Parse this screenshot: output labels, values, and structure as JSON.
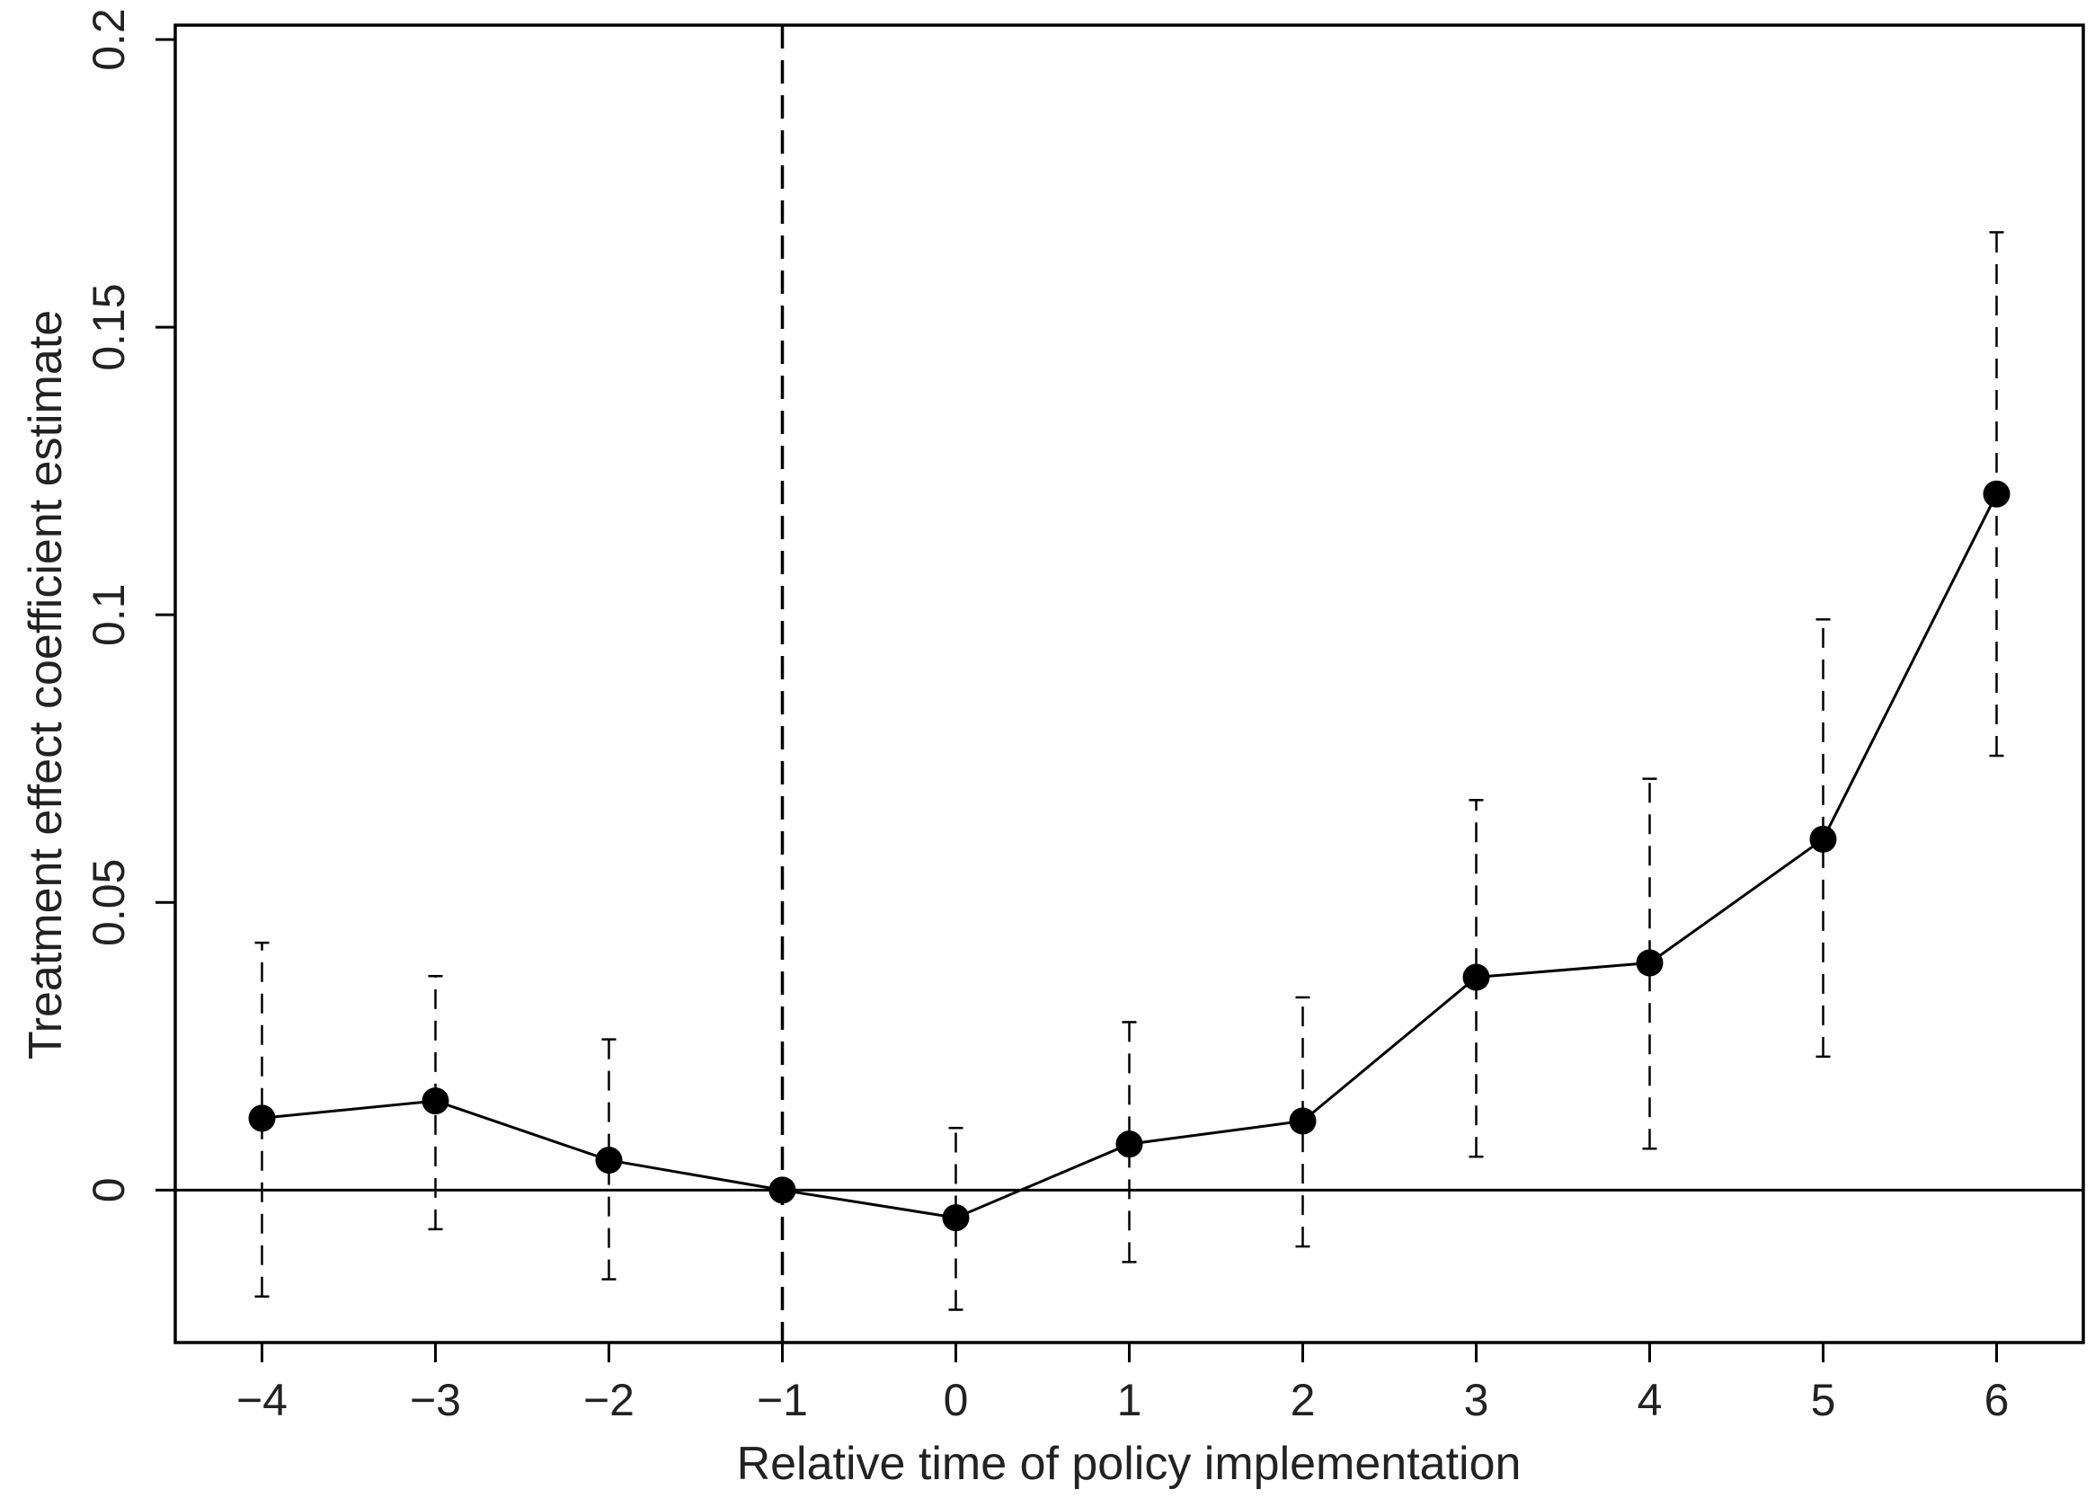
{
  "chart_data": {
    "type": "line",
    "title": "",
    "xlabel": "Relative time of policy implementation",
    "ylabel": "Treatment effect coefficient estimate",
    "x_ticks": [
      -4,
      -3,
      -2,
      -1,
      0,
      1,
      2,
      3,
      4,
      5,
      6
    ],
    "x_tick_labels": [
      "−4",
      "−3",
      "−2",
      "−1",
      "0",
      "1",
      "2",
      "3",
      "4",
      "5",
      "6"
    ],
    "y_ticks": [
      0,
      0.05,
      0.1,
      0.15,
      0.2
    ],
    "y_tick_labels": [
      "0",
      "0.05",
      "0.1",
      "0.15",
      "0.2"
    ],
    "xlim": [
      -4.5,
      6.5
    ],
    "ylim": [
      -0.0265,
      0.2025
    ],
    "reference_lines": {
      "horizontal_at_y": 0,
      "vertical_dashed_at_x": -1
    },
    "grid": false,
    "legend": "none",
    "series": [
      {
        "x": [
          -4,
          -3,
          -2,
          -1,
          0,
          1,
          2,
          3,
          4,
          5,
          6
        ],
        "values": [
          0.0125,
          0.0155,
          0.0052,
          0.0,
          -0.0048,
          0.008,
          0.012,
          0.037,
          0.0395,
          0.061,
          0.121
        ],
        "ci_lower": [
          -0.0185,
          -0.0068,
          -0.0155,
          0.0,
          -0.0208,
          -0.0125,
          -0.0098,
          0.0058,
          0.0072,
          0.0232,
          0.0755
        ],
        "ci_upper": [
          0.043,
          0.0372,
          0.0262,
          0.0,
          0.0108,
          0.0292,
          0.0335,
          0.0678,
          0.0715,
          0.0992,
          0.1665
        ]
      }
    ],
    "colors": {
      "line": "#000000",
      "marker": "#000000",
      "axes": "#000000",
      "text": "#222222"
    }
  }
}
